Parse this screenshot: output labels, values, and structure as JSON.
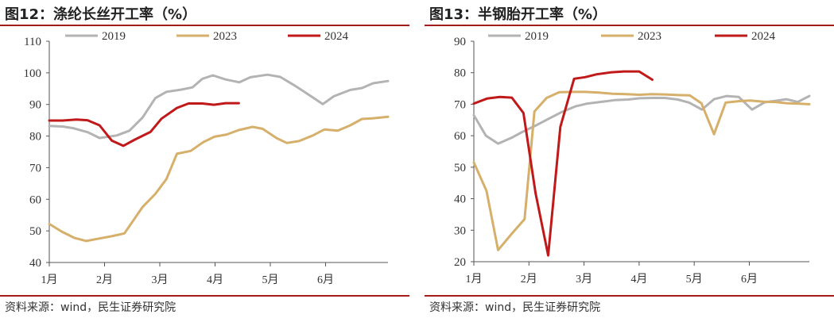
{
  "source_label": "资料来源：wind，民生证券研究院",
  "chart_data": [
    {
      "type": "line",
      "title": "图12：涤纶长丝开工率（%）",
      "xlabel": "",
      "ylabel": "",
      "ylim": [
        40,
        110
      ],
      "yticks": [
        "40",
        "50",
        "60",
        "70",
        "80",
        "90",
        "100",
        "110"
      ],
      "xlim": [
        0,
        6.13
      ],
      "xticks": [
        "1月",
        "2月",
        "3月",
        "4月",
        "5月",
        "6月"
      ],
      "grid": false,
      "legend": "top",
      "series": [
        {
          "name": "2019",
          "color": "#b3b3b3",
          "x": [
            0.0,
            0.25,
            0.43,
            0.7,
            0.91,
            1.22,
            1.45,
            1.69,
            1.92,
            2.12,
            2.39,
            2.59,
            2.77,
            2.96,
            3.19,
            3.44,
            3.64,
            3.95,
            4.18,
            4.45,
            4.67,
            4.95,
            5.15,
            5.45,
            5.66,
            5.86,
            6.13
          ],
          "y": [
            83.2,
            83.0,
            82.5,
            81.2,
            79.4,
            80.2,
            81.7,
            85.9,
            92.0,
            94.0,
            94.7,
            95.4,
            98.1,
            99.2,
            97.9,
            97.0,
            98.6,
            99.4,
            98.7,
            95.9,
            93.4,
            90.1,
            92.6,
            94.6,
            95.2,
            96.7,
            97.4
          ]
        },
        {
          "name": "2023",
          "color": "#d6b06a",
          "x": [
            0.0,
            0.22,
            0.45,
            0.67,
            0.91,
            1.13,
            1.36,
            1.69,
            1.92,
            2.12,
            2.31,
            2.56,
            2.79,
            2.99,
            3.21,
            3.43,
            3.68,
            3.86,
            4.12,
            4.3,
            4.52,
            4.77,
            4.98,
            5.22,
            5.45,
            5.66,
            5.85,
            6.13
          ],
          "y": [
            52.2,
            49.8,
            47.8,
            46.8,
            47.6,
            48.3,
            49.2,
            57.6,
            61.7,
            66.4,
            74.4,
            75.3,
            78.1,
            79.8,
            80.5,
            81.9,
            82.9,
            82.3,
            79.3,
            77.8,
            78.4,
            80.2,
            82.1,
            81.7,
            83.4,
            85.4,
            85.6,
            86.1
          ]
        },
        {
          "name": "2024",
          "color": "#c01919",
          "x": [
            0.0,
            0.24,
            0.49,
            0.69,
            0.91,
            1.13,
            1.34,
            1.55,
            1.83,
            2.03,
            2.31,
            2.52,
            2.77,
            2.98,
            3.19,
            3.43
          ],
          "y": [
            84.9,
            84.9,
            85.2,
            85.0,
            83.4,
            78.6,
            76.9,
            78.9,
            81.3,
            85.5,
            88.9,
            90.3,
            90.3,
            89.9,
            90.4,
            90.4
          ]
        }
      ]
    },
    {
      "type": "line",
      "title": "图13：半钢胎开工率（%）",
      "xlabel": "",
      "ylabel": "",
      "ylim": [
        20,
        90
      ],
      "yticks": [
        "20",
        "30",
        "40",
        "50",
        "60",
        "70",
        "80",
        "90"
      ],
      "xlim": [
        0,
        6.09
      ],
      "xticks": [
        "1月",
        "2月",
        "3月",
        "4月",
        "5月",
        "6月"
      ],
      "grid": false,
      "legend": "top",
      "series": [
        {
          "name": "2019",
          "color": "#b3b3b3",
          "x": [
            0.0,
            0.22,
            0.44,
            0.68,
            0.89,
            1.12,
            1.35,
            1.58,
            1.84,
            2.06,
            2.33,
            2.55,
            2.8,
            3.01,
            3.24,
            3.47,
            3.7,
            3.91,
            4.14,
            4.36,
            4.59,
            4.81,
            5.05,
            5.28,
            5.48,
            5.67,
            5.88,
            6.09
          ],
          "y": [
            66.5,
            60.0,
            57.5,
            59.3,
            61.3,
            63.2,
            65.3,
            67.4,
            69.3,
            70.2,
            70.8,
            71.3,
            71.5,
            71.9,
            72.0,
            72.0,
            71.5,
            70.5,
            68.3,
            71.6,
            72.6,
            72.3,
            68.3,
            70.6,
            71.1,
            71.6,
            70.7,
            72.6
          ]
        },
        {
          "name": "2023",
          "color": "#d6b06a",
          "x": [
            0.0,
            0.23,
            0.44,
            0.68,
            0.92,
            1.1,
            1.32,
            1.55,
            1.8,
            2.02,
            2.27,
            2.52,
            2.77,
            3.0,
            3.23,
            3.47,
            3.71,
            3.92,
            4.13,
            4.36,
            4.57,
            4.82,
            5.01,
            5.26,
            5.47,
            5.69,
            5.87,
            6.09
          ],
          "y": [
            51.5,
            42.5,
            23.7,
            28.7,
            33.5,
            67.7,
            72.0,
            73.8,
            73.9,
            73.9,
            73.7,
            73.3,
            73.2,
            73.0,
            73.2,
            73.1,
            72.9,
            72.8,
            70.3,
            60.5,
            70.5,
            71.0,
            71.2,
            70.8,
            70.7,
            70.3,
            70.2,
            70.0
          ]
        },
        {
          "name": "2024",
          "color": "#c01919",
          "x": [
            0.0,
            0.24,
            0.47,
            0.69,
            0.9,
            1.12,
            1.35,
            1.57,
            1.82,
            2.02,
            2.23,
            2.48,
            2.72,
            3.0,
            3.24
          ],
          "y": [
            70.2,
            71.8,
            72.3,
            72.1,
            67.2,
            41.8,
            22.0,
            62.8,
            78.1,
            78.6,
            79.5,
            80.1,
            80.4,
            80.4,
            77.8
          ]
        }
      ]
    }
  ]
}
